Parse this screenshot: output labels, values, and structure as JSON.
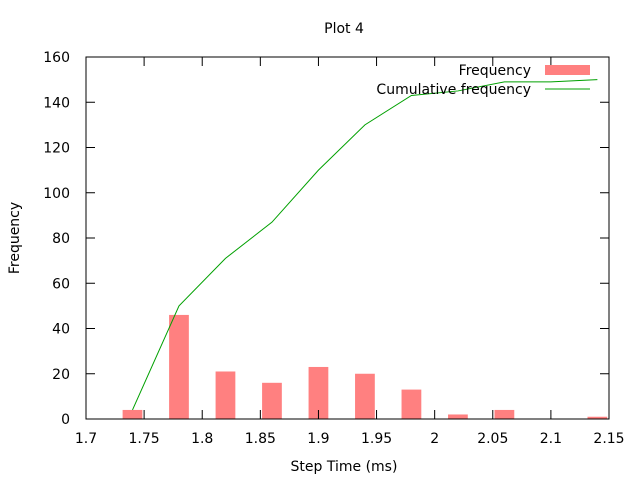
{
  "chart_data": {
    "type": "bar",
    "title": "Plot 4",
    "xlabel": "Step Time (ms)",
    "ylabel": "Frequency",
    "xlim": [
      1.7,
      2.15
    ],
    "ylim": [
      0,
      160
    ],
    "xticks": [
      1.7,
      1.75,
      1.8,
      1.85,
      1.9,
      1.95,
      2.0,
      2.05,
      2.1,
      2.15
    ],
    "xtick_labels": [
      "1.7",
      "1.75",
      "1.8",
      "1.85",
      "1.9",
      "1.95",
      "2",
      "2.05",
      "2.1",
      "2.15"
    ],
    "yticks": [
      0,
      20,
      40,
      60,
      80,
      100,
      120,
      140,
      160
    ],
    "ytick_labels": [
      "0",
      "20",
      "40",
      "60",
      "80",
      "100",
      "120",
      "140",
      "160"
    ],
    "grid": false,
    "legend_position": "top-right",
    "series": [
      {
        "name": "Frequency",
        "type": "bar",
        "color": "#ff8080",
        "bar_width": 0.017,
        "x": [
          1.74,
          1.78,
          1.82,
          1.86,
          1.9,
          1.94,
          1.98,
          2.02,
          2.06,
          2.1,
          2.14
        ],
        "values": [
          4,
          46,
          21,
          16,
          23,
          20,
          13,
          2,
          4,
          0,
          1
        ]
      },
      {
        "name": "Cumulative frequency",
        "type": "line",
        "color": "#00a000",
        "x": [
          1.74,
          1.78,
          1.82,
          1.86,
          1.9,
          1.94,
          1.98,
          2.02,
          2.06,
          2.1,
          2.14
        ],
        "values": [
          4,
          50,
          71,
          87,
          110,
          130,
          143,
          145,
          149,
          149,
          150
        ]
      }
    ]
  }
}
